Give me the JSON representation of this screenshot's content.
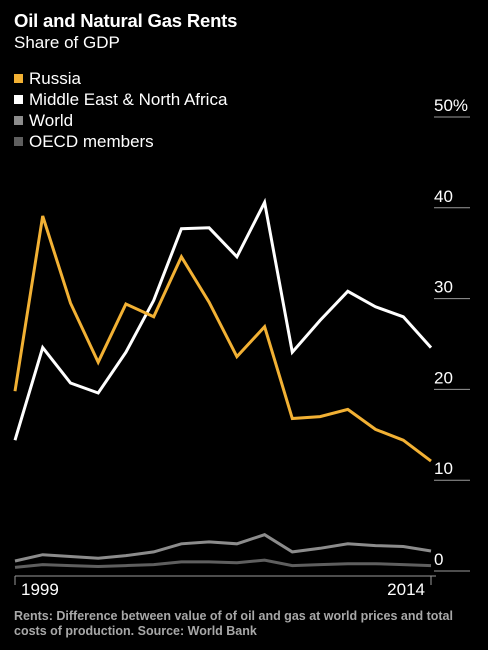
{
  "header": {
    "title": "Oil and Natural Gas Rents",
    "subtitle": "Share of GDP"
  },
  "footnote": "Rents: Difference between value of of oil and gas at world prices and total costs of production. Source: World Bank",
  "colors": {
    "background": "#000000",
    "russia": "#f2b134",
    "mena": "#ffffff",
    "world": "#8c8c8c",
    "oecd": "#5f5f5f",
    "axis": "#9a9a9a"
  },
  "chart_data": {
    "type": "line",
    "title": "Oil and Natural Gas Rents",
    "subtitle": "Share of GDP",
    "x": [
      1999,
      2000,
      2001,
      2002,
      2003,
      2004,
      2005,
      2006,
      2007,
      2008,
      2009,
      2010,
      2011,
      2012,
      2013,
      2014
    ],
    "x_tick_labels": [
      "1999",
      "2014"
    ],
    "y_tick_values": [
      0,
      10,
      20,
      30,
      40,
      50
    ],
    "y_tick_labels": [
      "0",
      "10",
      "20",
      "30",
      "40",
      "50%"
    ],
    "ylim": [
      0,
      50
    ],
    "legend_position": "top-left",
    "series": [
      {
        "name": "Russia",
        "color": "#f2b134",
        "values": [
          19.8,
          39.1,
          29.5,
          23.0,
          29.4,
          28.0,
          34.6,
          29.6,
          23.6,
          26.9,
          16.8,
          17.0,
          17.8,
          15.6,
          14.4,
          12.1
        ]
      },
      {
        "name": "Middle East & North Africa",
        "color": "#ffffff",
        "values": [
          14.4,
          24.6,
          20.7,
          19.6,
          24.1,
          29.8,
          37.7,
          37.8,
          34.6,
          40.6,
          24.1,
          27.6,
          30.8,
          29.1,
          28.0,
          24.6
        ]
      },
      {
        "name": "World",
        "color": "#8c8c8c",
        "values": [
          1.1,
          1.8,
          1.6,
          1.4,
          1.7,
          2.1,
          3.0,
          3.2,
          3.0,
          4.0,
          2.1,
          2.5,
          3.0,
          2.8,
          2.7,
          2.2
        ]
      },
      {
        "name": "OECD members",
        "color": "#5f5f5f",
        "values": [
          0.4,
          0.7,
          0.6,
          0.5,
          0.6,
          0.7,
          1.0,
          1.0,
          0.9,
          1.2,
          0.6,
          0.7,
          0.8,
          0.8,
          0.7,
          0.6
        ]
      }
    ]
  }
}
